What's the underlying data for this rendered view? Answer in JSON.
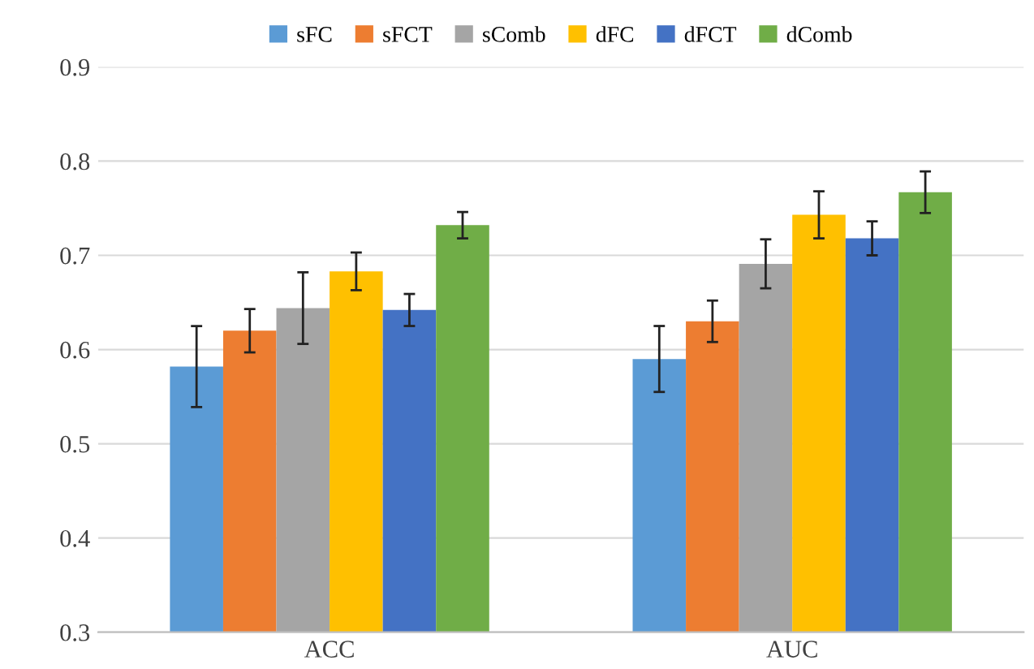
{
  "chart_data": {
    "type": "bar",
    "categories": [
      "ACC",
      "AUC"
    ],
    "series": [
      {
        "name": "sFC",
        "color": "#5b9bd5",
        "values": [
          0.582,
          0.59
        ],
        "errors": [
          0.043,
          0.035
        ]
      },
      {
        "name": "sFCT",
        "color": "#ed7d31",
        "values": [
          0.62,
          0.63
        ],
        "errors": [
          0.023,
          0.022
        ]
      },
      {
        "name": "sComb",
        "color": "#a5a5a5",
        "values": [
          0.644,
          0.691
        ],
        "errors": [
          0.038,
          0.026
        ]
      },
      {
        "name": "dFC",
        "color": "#ffc000",
        "values": [
          0.683,
          0.743
        ],
        "errors": [
          0.02,
          0.025
        ]
      },
      {
        "name": "dFCT",
        "color": "#4472c4",
        "values": [
          0.642,
          0.718
        ],
        "errors": [
          0.017,
          0.018
        ]
      },
      {
        "name": "dComb",
        "color": "#70ad47",
        "values": [
          0.732,
          0.767
        ],
        "errors": [
          0.014,
          0.022
        ]
      }
    ],
    "ylim": [
      0.3,
      0.9
    ],
    "yticks": [
      0.3,
      0.4,
      0.5,
      0.6,
      0.7,
      0.8,
      0.9
    ],
    "grid": "y",
    "legend": "top"
  }
}
